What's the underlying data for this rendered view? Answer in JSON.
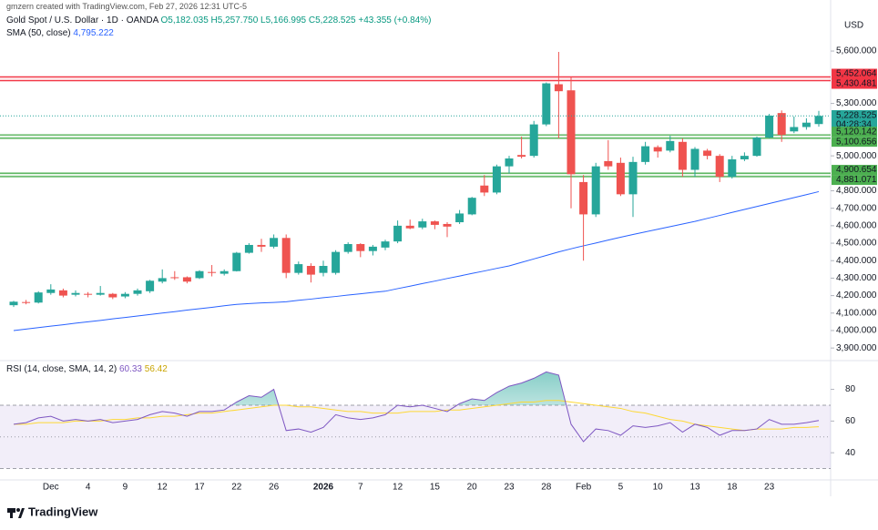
{
  "attribution": "gmzern created with TradingView.com, Feb 27, 2026 12:31 UTC-5",
  "brand": "TradingView",
  "chart_data": [
    {
      "type": "candlestick",
      "title": "Gold Spot / U.S. Dollar · 1D · OANDA",
      "ohlc_labels": [
        "O5,182.035",
        "H5,257.750",
        "L5,166.995",
        "C5,228.525",
        "+43.355 (+0.84%)"
      ],
      "currency": "USD",
      "categories": [
        null,
        null,
        null,
        "Dec",
        null,
        null,
        "4",
        null,
        null,
        "9",
        null,
        null,
        "12",
        null,
        null,
        "17",
        null,
        null,
        "22",
        null,
        null,
        "26",
        null,
        null,
        null,
        "2026",
        null,
        null,
        "7",
        null,
        null,
        "12",
        null,
        null,
        "15",
        null,
        null,
        "20",
        null,
        null,
        "23",
        null,
        null,
        "28",
        null,
        null,
        "Feb",
        null,
        null,
        "5",
        null,
        null,
        "10",
        null,
        null,
        "13",
        null,
        null,
        "18",
        null,
        null,
        "23",
        null,
        null,
        null,
        null
      ],
      "open": [
        4145,
        4163,
        4160,
        4215,
        4230,
        4205,
        4210,
        4205,
        4210,
        4195,
        4210,
        4225,
        4280,
        4305,
        4305,
        4300,
        4335,
        4325,
        4340,
        4445,
        4490,
        4480,
        4530,
        4330,
        4370,
        4330,
        4330,
        4450,
        4495,
        4455,
        4475,
        4510,
        4600,
        4590,
        4625,
        4610,
        4620,
        4665,
        4830,
        4790,
        4940,
        5005,
        5000,
        5180,
        5410,
        5375,
        4850,
        4665,
        4970,
        4960,
        4780,
        4965,
        5050,
        5030,
        5080,
        4920,
        5030,
        5000,
        4880,
        4980,
        5000,
        5105,
        5245,
        5140,
        5165,
        5182.035
      ],
      "high": [
        4170,
        4175,
        4225,
        4265,
        4240,
        4230,
        4220,
        4255,
        4215,
        4220,
        4240,
        4290,
        4350,
        4340,
        4310,
        4345,
        4375,
        4350,
        4450,
        4500,
        4525,
        4550,
        4550,
        4395,
        4385,
        4400,
        4460,
        4505,
        4500,
        4490,
        4520,
        4630,
        4635,
        4640,
        4630,
        4620,
        4690,
        4765,
        4890,
        4950,
        5000,
        5110,
        5200,
        5420,
        5595,
        5450,
        4890,
        4960,
        5090,
        4990,
        4995,
        5080,
        5060,
        5115,
        5100,
        5050,
        5040,
        5010,
        5000,
        5020,
        5110,
        5240,
        5260,
        5225,
        5215,
        5257.75
      ],
      "low": [
        4135,
        4150,
        4155,
        4205,
        4190,
        4195,
        4190,
        4200,
        4180,
        4185,
        4200,
        4215,
        4270,
        4290,
        4270,
        4295,
        4310,
        4315,
        4338,
        4440,
        4450,
        4470,
        4300,
        4320,
        4275,
        4310,
        4320,
        4440,
        4420,
        4430,
        4460,
        4500,
        4580,
        4580,
        4580,
        4535,
        4610,
        4660,
        4770,
        4780,
        4900,
        4985,
        4990,
        5170,
        5100,
        4700,
        4400,
        4650,
        4920,
        4770,
        4650,
        4950,
        4990,
        5020,
        4880,
        4880,
        4980,
        4850,
        4870,
        4970,
        4995,
        5100,
        5080,
        5130,
        5150,
        5166.995
      ],
      "close": [
        4165,
        4158,
        4218,
        4235,
        4200,
        4215,
        4205,
        4215,
        4190,
        4210,
        4230,
        4285,
        4300,
        4300,
        4280,
        4340,
        4330,
        4340,
        4445,
        4490,
        4480,
        4530,
        4330,
        4380,
        4320,
        4370,
        4450,
        4495,
        4455,
        4480,
        4510,
        4600,
        4585,
        4625,
        4605,
        4595,
        4670,
        4760,
        4790,
        4940,
        4985,
        4995,
        5180,
        5415,
        5370,
        4895,
        4665,
        4940,
        4940,
        4780,
        4965,
        5055,
        5025,
        5085,
        4920,
        5040,
        5000,
        4880,
        4980,
        5000,
        5105,
        5230,
        5120,
        5165,
        5190,
        5228.525
      ],
      "up_color": "#26a69a",
      "down_color": "#ef5350",
      "last_price_label": "5,228.525",
      "countdown": "04:28:34",
      "overlays": [
        {
          "name": "SMA (50, close)",
          "last_label": "4,795.222",
          "color": "#2962ff",
          "values": [
            4000,
            4008,
            4017,
            4025,
            4033,
            4042,
            4050,
            4058,
            4067,
            4075,
            4083,
            4092,
            4100,
            4108,
            4117,
            4125,
            4133,
            4142,
            4150,
            4154,
            4158,
            4161,
            4165,
            4173,
            4180,
            4188,
            4195,
            4203,
            4210,
            4218,
            4225,
            4240,
            4254,
            4269,
            4283,
            4298,
            4312,
            4327,
            4341,
            4356,
            4370,
            4390,
            4410,
            4430,
            4450,
            4468,
            4485,
            4501,
            4518,
            4534,
            4550,
            4565,
            4580,
            4595,
            4610,
            4625,
            4642,
            4659,
            4676,
            4693,
            4710,
            4727,
            4744,
            4761,
            4778,
            4795.222
          ]
        }
      ],
      "zones": [
        {
          "color": "#f23645",
          "levels": [
            {
              "value": 5452.064,
              "label": "5,452.064"
            },
            {
              "value": 5430.481,
              "label": "5,430.481"
            }
          ]
        },
        {
          "color": "#4caf50",
          "levels": [
            {
              "value": 5120.142,
              "label": "5,120.142"
            },
            {
              "value": 5100.656,
              "label": "5,100.656"
            }
          ]
        },
        {
          "color": "#4caf50",
          "levels": [
            {
              "value": 4900.654,
              "label": "4,900.654"
            },
            {
              "value": 4881.071,
              "label": "4,881.071"
            }
          ]
        }
      ],
      "ylim": [
        3833,
        5814
      ],
      "yticks": [
        {
          "value": 5600,
          "label": "5,600.000"
        },
        {
          "value": 5300,
          "label": "5,300.000"
        },
        {
          "value": 5000,
          "label": "5,000.000"
        },
        {
          "value": 4800,
          "label": "4,800.000"
        },
        {
          "value": 4700,
          "label": "4,700.000"
        },
        {
          "value": 4600,
          "label": "4,600.000"
        },
        {
          "value": 4500,
          "label": "4,500.000"
        },
        {
          "value": 4400,
          "label": "4,400.000"
        },
        {
          "value": 4300,
          "label": "4,300.000"
        },
        {
          "value": 4200,
          "label": "4,200.000"
        },
        {
          "value": 4100,
          "label": "4,100.000"
        },
        {
          "value": 4000,
          "label": "4,000.000"
        },
        {
          "value": 3900,
          "label": "3,900.000"
        }
      ],
      "grid": false
    },
    {
      "type": "line",
      "title": "RSI (14, close, SMA, 14, 2)",
      "series": [
        {
          "name": "RSI",
          "color": "#7e57c2",
          "values": [
            58,
            59,
            62,
            63,
            60,
            61,
            60,
            61,
            59,
            60,
            61,
            64,
            66,
            65,
            63,
            66,
            66,
            67,
            72,
            76,
            75,
            80,
            54,
            55,
            53,
            56,
            64,
            62,
            61,
            62,
            64,
            70,
            69,
            70,
            68,
            66,
            71,
            74,
            73,
            78,
            82,
            84,
            87,
            91,
            89,
            58,
            47,
            55,
            54,
            51,
            57,
            56,
            57,
            59,
            53,
            58,
            56,
            51,
            54,
            54,
            55,
            61,
            58,
            58,
            59,
            60.33
          ]
        },
        {
          "name": "RSI-based MA",
          "color": "#fdd835",
          "values": [
            58,
            58,
            59,
            59,
            59,
            60,
            60,
            60,
            61,
            61,
            62,
            62,
            63,
            63,
            64,
            65,
            65,
            66,
            67,
            68,
            69,
            70,
            70,
            69,
            69,
            68,
            67,
            66,
            66,
            65,
            65,
            65,
            66,
            66,
            66,
            67,
            67,
            68,
            69,
            70,
            71,
            72,
            72,
            73,
            73,
            72,
            71,
            70,
            69,
            68,
            66,
            65,
            63,
            61,
            60,
            58,
            57,
            56,
            55,
            54,
            55,
            55,
            55,
            56,
            56,
            56.42
          ]
        }
      ],
      "bands": [
        70,
        50,
        30
      ],
      "ylim": [
        24,
        97
      ],
      "yticks": [
        80,
        60,
        40
      ]
    }
  ]
}
